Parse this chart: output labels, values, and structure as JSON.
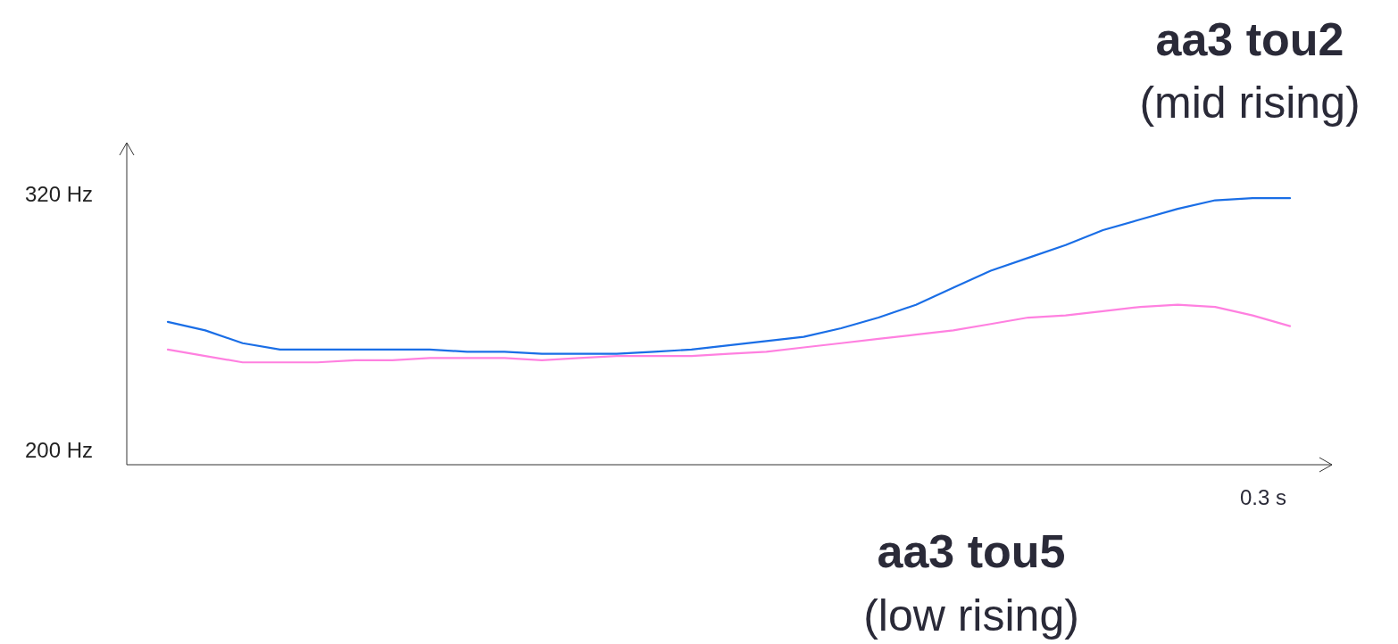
{
  "chart_data": {
    "type": "line",
    "annotations": [
      "aa3 tou2",
      "(mid rising)",
      "aa3 tou5",
      "(low rising)",
      "0.3 s"
    ],
    "categories": [
      null,
      null,
      null,
      null,
      null,
      null,
      null,
      null,
      null,
      null,
      null,
      null,
      null,
      null,
      null,
      null,
      null,
      null,
      null,
      null,
      null,
      null,
      null,
      null,
      null,
      null,
      null,
      null,
      null,
      null,
      null
    ],
    "ylim": [
      193,
      344
    ],
    "yticks": [
      {
        "value": 200,
        "label": "200 Hz"
      },
      {
        "value": 320,
        "label": "320 Hz"
      }
    ],
    "series": [
      {
        "color": "#1a6ee6",
        "values": [
          260,
          256,
          250,
          247,
          247,
          247,
          247,
          247,
          246,
          246,
          245,
          245,
          245,
          246,
          247,
          249,
          251,
          253,
          257,
          262,
          268,
          276,
          284,
          290,
          296,
          303,
          308,
          313,
          317,
          318,
          318
        ]
      },
      {
        "color": "#ff80e0",
        "values": [
          247,
          244,
          241,
          241,
          241,
          242,
          242,
          243,
          243,
          243,
          242,
          243,
          244,
          244,
          244,
          245,
          246,
          248,
          250,
          252,
          254,
          256,
          259,
          262,
          263,
          265,
          267,
          268,
          267,
          263,
          258
        ]
      }
    ]
  }
}
